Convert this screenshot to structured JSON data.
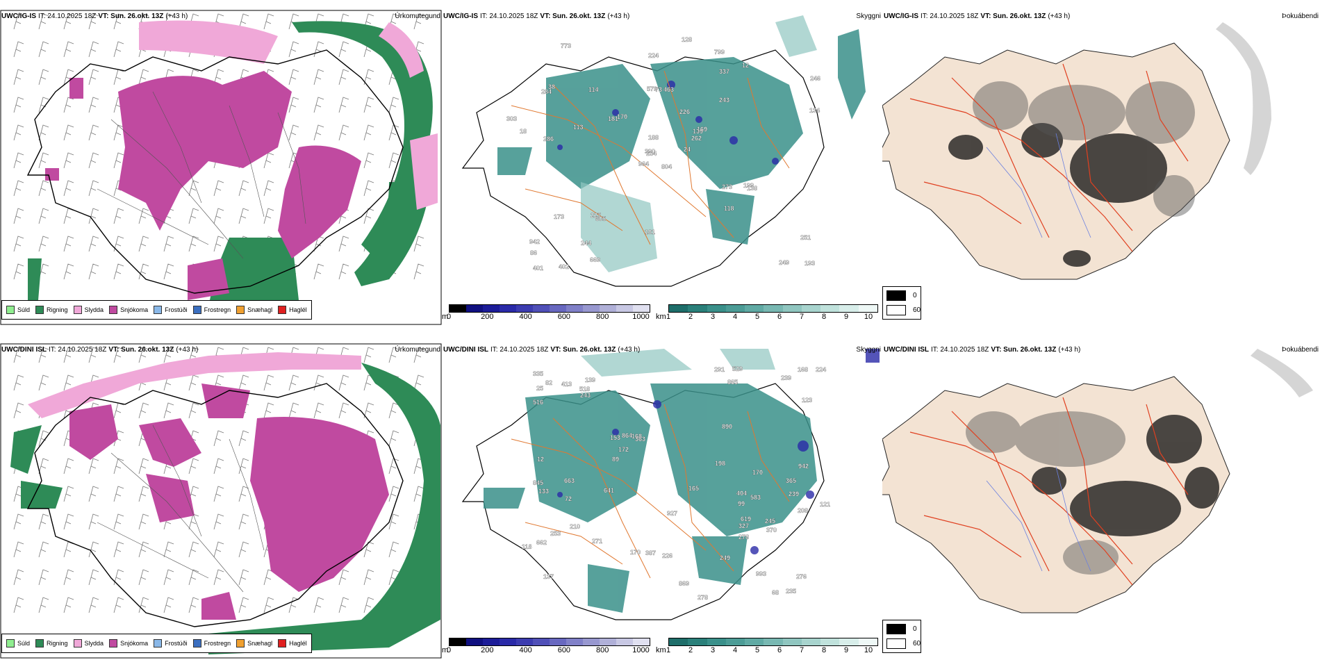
{
  "rows": [
    {
      "model": "UWC/IG-IS",
      "it_label": "IT: 24.10.2025 18Z",
      "vt_label": "VT: Sun. 26.okt. 13Z",
      "lead": "(+43 h)"
    },
    {
      "model": "UWC/DINI ISL",
      "it_label": "IT: 24.10.2025 18Z",
      "vt_label": "VT: Sun. 26.okt. 13Z",
      "lead": "(+43 h)"
    }
  ],
  "params": {
    "precip_type": "Úrkomutegund",
    "cloud": "Skyggni",
    "fog": "Þokuábendi"
  },
  "precip_legend": [
    {
      "label": "Súld",
      "color": "#90ee90"
    },
    {
      "label": "Rigning",
      "color": "#2e8b57"
    },
    {
      "label": "Slydda",
      "color": "#f0a8d8"
    },
    {
      "label": "Snjókoma",
      "color": "#c04aa0"
    },
    {
      "label": "Frostúði",
      "color": "#8ab8e8"
    },
    {
      "label": "Frostregn",
      "color": "#3b6fc0"
    },
    {
      "label": "Snæhagl",
      "color": "#f0a030"
    },
    {
      "label": "Haglél",
      "color": "#e02020"
    }
  ],
  "cloud_base_scale": {
    "unit": "m",
    "ticks": [
      "0",
      "200",
      "400",
      "600",
      "800",
      "1000"
    ],
    "colors": [
      "#000000",
      "#101080",
      "#1c1c98",
      "#2a2aa8",
      "#3c3cb0",
      "#5050b8",
      "#6868c0",
      "#8080c8",
      "#9898d0",
      "#b0b0d8",
      "#c8c8e4",
      "#e0e0f0"
    ]
  },
  "visibility_scale": {
    "unit": "km",
    "ticks": [
      "1",
      "2",
      "3",
      "4",
      "5",
      "6",
      "7",
      "8",
      "9",
      "10"
    ],
    "colors": [
      "#1e6e6a",
      "#2a807a",
      "#3a908a",
      "#4c9c96",
      "#60aaa4",
      "#78b8b2",
      "#90c6c0",
      "#a8d4ce",
      "#c0e2dc",
      "#d8eeea",
      "#eef8f6"
    ]
  },
  "fog_scale": {
    "top": "0",
    "bottom": "60",
    "top_color": "#000000",
    "bottom_color": "#ffffff"
  },
  "map_labels_top": [
    "804",
    "284",
    "254",
    "942",
    "139",
    "605",
    "799",
    "463",
    "337",
    "24",
    "773",
    "193",
    "286",
    "246",
    "964",
    "243",
    "402",
    "579",
    "226",
    "173",
    "170",
    "86",
    "244",
    "73",
    "169",
    "138",
    "38",
    "224",
    "18",
    "273",
    "134",
    "390",
    "181",
    "188",
    "114",
    "12",
    "227",
    "249",
    "251",
    "199",
    "128",
    "181",
    "113",
    "118",
    "669",
    "303",
    "262",
    "401"
  ],
  "map_labels_bottom": [
    "99",
    "239",
    "137",
    "139",
    "363",
    "993",
    "662",
    "865",
    "153",
    "278",
    "516",
    "845",
    "25",
    "276",
    "170",
    "942",
    "927",
    "165",
    "168",
    "210",
    "224",
    "239",
    "89",
    "208",
    "291",
    "518",
    "619",
    "133",
    "243",
    "170",
    "869",
    "249",
    "172",
    "641",
    "365",
    "370",
    "327",
    "663",
    "226",
    "253",
    "123",
    "529",
    "235",
    "387",
    "245",
    "271",
    "118",
    "82",
    "198",
    "12",
    "121",
    "864",
    "168",
    "404",
    "278",
    "68",
    "890",
    "335",
    "72",
    "413",
    "583"
  ]
}
